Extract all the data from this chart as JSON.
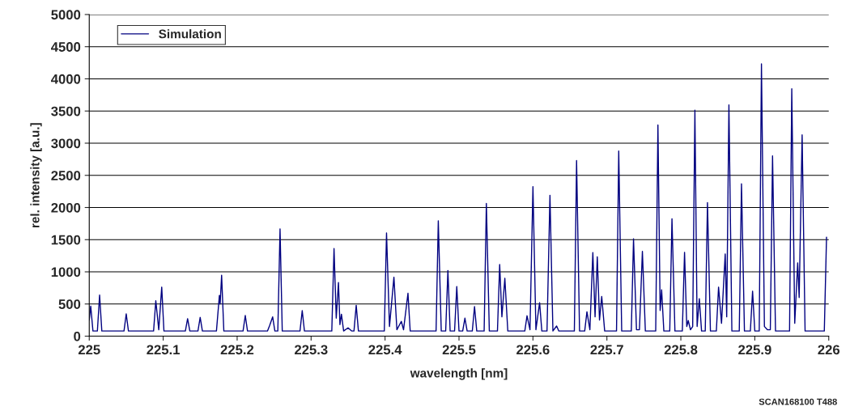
{
  "chart_data": {
    "type": "line",
    "xlabel": "wavelength [nm]",
    "ylabel": "rel. intensity [a.u.]",
    "annotations": [
      "SCAN168100 T488"
    ],
    "xlim": [
      225,
      226
    ],
    "xticks": [
      225,
      225.1,
      225.2,
      225.3,
      225.4,
      225.5,
      225.6,
      225.7,
      225.8,
      225.9,
      226
    ],
    "ylim": [
      0,
      5000
    ],
    "yticks": [
      0,
      500,
      1000,
      1500,
      2000,
      2500,
      3000,
      3500,
      4000,
      4500,
      5000
    ],
    "grid": "y",
    "legend": "top left",
    "marker": "none",
    "line_style": "solid",
    "series": [
      {
        "name": "Simulation",
        "color": "#000080",
        "x": [
          225.0,
          225.002,
          225.005,
          225.011,
          225.014,
          225.017,
          225.047,
          225.05,
          225.053,
          225.087,
          225.09,
          225.094,
          225.098,
          225.101,
          225.13,
          225.133,
          225.136,
          225.147,
          225.15,
          225.153,
          225.172,
          225.176,
          225.177,
          225.179,
          225.182,
          225.208,
          225.211,
          225.214,
          225.241,
          225.244,
          225.248,
          225.251,
          225.255,
          225.258,
          225.261,
          225.285,
          225.288,
          225.291,
          225.328,
          225.331,
          225.334,
          225.337,
          225.339,
          225.341,
          225.344,
          225.35,
          225.355,
          225.358,
          225.361,
          225.364,
          225.399,
          225.402,
          225.406,
          225.412,
          225.416,
          225.422,
          225.425,
          225.431,
          225.434,
          225.469,
          225.472,
          225.476,
          225.482,
          225.485,
          225.488,
          225.494,
          225.497,
          225.5,
          225.505,
          225.508,
          225.511,
          225.518,
          225.521,
          225.524,
          225.534,
          225.537,
          225.541,
          225.552,
          225.555,
          225.558,
          225.562,
          225.566,
          225.589,
          225.592,
          225.596,
          225.6,
          225.604,
          225.609,
          225.612,
          225.619,
          225.623,
          225.627,
          225.632,
          225.635,
          225.656,
          225.659,
          225.663,
          225.67,
          225.673,
          225.677,
          225.681,
          225.684,
          225.687,
          225.69,
          225.693,
          225.697,
          225.713,
          225.716,
          225.72,
          225.733,
          225.736,
          225.74,
          225.744,
          225.748,
          225.752,
          225.766,
          225.769,
          225.772,
          225.774,
          225.777,
          225.785,
          225.788,
          225.792,
          225.802,
          225.805,
          225.808,
          225.81,
          225.813,
          225.816,
          225.819,
          225.822,
          225.825,
          225.828,
          225.833,
          225.836,
          225.84,
          225.848,
          225.851,
          225.855,
          225.86,
          225.862,
          225.865,
          225.869,
          225.879,
          225.882,
          225.886,
          225.894,
          225.897,
          225.9,
          225.906,
          225.909,
          225.913,
          225.917,
          225.921,
          225.924,
          225.928,
          225.947,
          225.95,
          225.954,
          225.958,
          225.96,
          225.964,
          225.968,
          225.994,
          225.997
        ],
        "values": [
          250,
          467,
          80,
          80,
          638,
          80,
          80,
          346,
          80,
          80,
          550,
          100,
          763,
          80,
          80,
          271,
          80,
          80,
          292,
          80,
          80,
          634,
          500,
          946,
          80,
          80,
          321,
          80,
          80,
          167,
          300,
          80,
          80,
          1668,
          80,
          80,
          396,
          80,
          80,
          1363,
          280,
          834,
          180,
          342,
          80,
          130,
          80,
          80,
          480,
          80,
          80,
          1605,
          150,
          917,
          100,
          230,
          100,
          667,
          80,
          80,
          1792,
          80,
          80,
          1021,
          80,
          80,
          771,
          80,
          80,
          280,
          80,
          80,
          459,
          80,
          80,
          2063,
          80,
          80,
          1113,
          300,
          900,
          80,
          80,
          317,
          100,
          2325,
          100,
          521,
          80,
          80,
          2188,
          80,
          158,
          80,
          80,
          2729,
          80,
          80,
          379,
          100,
          1300,
          300,
          1233,
          250,
          617,
          80,
          80,
          2879,
          80,
          80,
          1513,
          100,
          100,
          1317,
          80,
          80,
          3283,
          400,
          721,
          80,
          80,
          1825,
          80,
          80,
          1304,
          150,
          242,
          100,
          150,
          3513,
          150,
          583,
          80,
          80,
          2075,
          80,
          80,
          763,
          200,
          1279,
          300,
          3596,
          80,
          80,
          2367,
          80,
          80,
          700,
          80,
          80,
          4233,
          150,
          100,
          100,
          2804,
          80,
          80,
          3846,
          200,
          1138,
          600,
          3129,
          80,
          80,
          1540
        ]
      }
    ]
  }
}
